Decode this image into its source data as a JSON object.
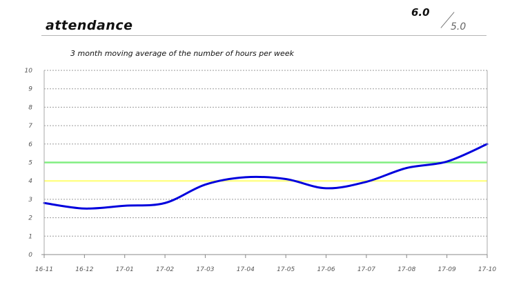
{
  "header": {
    "title": "attendance",
    "score": "6.0",
    "target": "5.0"
  },
  "chart_data": {
    "type": "line",
    "title": "3 month moving average of the number of hours per week",
    "xlabel": "",
    "ylabel": "",
    "categories": [
      "16-11",
      "16-12",
      "17-01",
      "17-02",
      "17-03",
      "17-04",
      "17-05",
      "17-06",
      "17-07",
      "17-08",
      "17-09",
      "17-10"
    ],
    "yticks": [
      0,
      1,
      2,
      3,
      4,
      5,
      6,
      7,
      8,
      9,
      10
    ],
    "ylim": [
      0,
      10
    ],
    "grid": true,
    "series": [
      {
        "color": "#0000dd",
        "values": [
          2.8,
          2.5,
          2.65,
          2.8,
          3.8,
          4.2,
          4.1,
          3.6,
          3.95,
          4.7,
          5.05,
          6.0
        ]
      }
    ],
    "reference_lines": [
      {
        "value": 5,
        "color": "#80ee80"
      },
      {
        "value": 4,
        "color": "#ffff88"
      }
    ]
  }
}
